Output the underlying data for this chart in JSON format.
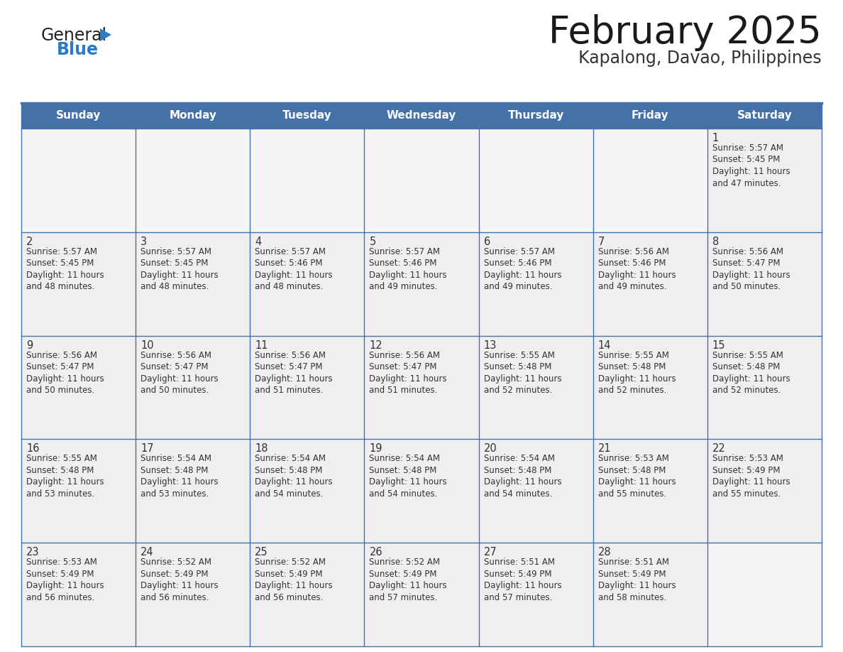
{
  "title": "February 2025",
  "subtitle": "Kapalong, Davao, Philippines",
  "header_bg_color": "#4472a8",
  "header_text_color": "#ffffff",
  "cell_bg_color": "#efefef",
  "empty_cell_bg_color": "#f5f5f5",
  "border_color": "#4472a8",
  "row_separator_color": "#4472a8",
  "day_headers": [
    "Sunday",
    "Monday",
    "Tuesday",
    "Wednesday",
    "Thursday",
    "Friday",
    "Saturday"
  ],
  "title_color": "#1a1a1a",
  "subtitle_color": "#333333",
  "day_number_color": "#333333",
  "info_text_color": "#333333",
  "calendar_data": [
    [
      null,
      null,
      null,
      null,
      null,
      null,
      {
        "day": 1,
        "sunrise": "5:57 AM",
        "sunset": "5:45 PM",
        "daylight": "11 hours and 47 minutes."
      }
    ],
    [
      {
        "day": 2,
        "sunrise": "5:57 AM",
        "sunset": "5:45 PM",
        "daylight": "11 hours and 48 minutes."
      },
      {
        "day": 3,
        "sunrise": "5:57 AM",
        "sunset": "5:45 PM",
        "daylight": "11 hours and 48 minutes."
      },
      {
        "day": 4,
        "sunrise": "5:57 AM",
        "sunset": "5:46 PM",
        "daylight": "11 hours and 48 minutes."
      },
      {
        "day": 5,
        "sunrise": "5:57 AM",
        "sunset": "5:46 PM",
        "daylight": "11 hours and 49 minutes."
      },
      {
        "day": 6,
        "sunrise": "5:57 AM",
        "sunset": "5:46 PM",
        "daylight": "11 hours and 49 minutes."
      },
      {
        "day": 7,
        "sunrise": "5:56 AM",
        "sunset": "5:46 PM",
        "daylight": "11 hours and 49 minutes."
      },
      {
        "day": 8,
        "sunrise": "5:56 AM",
        "sunset": "5:47 PM",
        "daylight": "11 hours and 50 minutes."
      }
    ],
    [
      {
        "day": 9,
        "sunrise": "5:56 AM",
        "sunset": "5:47 PM",
        "daylight": "11 hours and 50 minutes."
      },
      {
        "day": 10,
        "sunrise": "5:56 AM",
        "sunset": "5:47 PM",
        "daylight": "11 hours and 50 minutes."
      },
      {
        "day": 11,
        "sunrise": "5:56 AM",
        "sunset": "5:47 PM",
        "daylight": "11 hours and 51 minutes."
      },
      {
        "day": 12,
        "sunrise": "5:56 AM",
        "sunset": "5:47 PM",
        "daylight": "11 hours and 51 minutes."
      },
      {
        "day": 13,
        "sunrise": "5:55 AM",
        "sunset": "5:48 PM",
        "daylight": "11 hours and 52 minutes."
      },
      {
        "day": 14,
        "sunrise": "5:55 AM",
        "sunset": "5:48 PM",
        "daylight": "11 hours and 52 minutes."
      },
      {
        "day": 15,
        "sunrise": "5:55 AM",
        "sunset": "5:48 PM",
        "daylight": "11 hours and 52 minutes."
      }
    ],
    [
      {
        "day": 16,
        "sunrise": "5:55 AM",
        "sunset": "5:48 PM",
        "daylight": "11 hours and 53 minutes."
      },
      {
        "day": 17,
        "sunrise": "5:54 AM",
        "sunset": "5:48 PM",
        "daylight": "11 hours and 53 minutes."
      },
      {
        "day": 18,
        "sunrise": "5:54 AM",
        "sunset": "5:48 PM",
        "daylight": "11 hours and 54 minutes."
      },
      {
        "day": 19,
        "sunrise": "5:54 AM",
        "sunset": "5:48 PM",
        "daylight": "11 hours and 54 minutes."
      },
      {
        "day": 20,
        "sunrise": "5:54 AM",
        "sunset": "5:48 PM",
        "daylight": "11 hours and 54 minutes."
      },
      {
        "day": 21,
        "sunrise": "5:53 AM",
        "sunset": "5:48 PM",
        "daylight": "11 hours and 55 minutes."
      },
      {
        "day": 22,
        "sunrise": "5:53 AM",
        "sunset": "5:49 PM",
        "daylight": "11 hours and 55 minutes."
      }
    ],
    [
      {
        "day": 23,
        "sunrise": "5:53 AM",
        "sunset": "5:49 PM",
        "daylight": "11 hours and 56 minutes."
      },
      {
        "day": 24,
        "sunrise": "5:52 AM",
        "sunset": "5:49 PM",
        "daylight": "11 hours and 56 minutes."
      },
      {
        "day": 25,
        "sunrise": "5:52 AM",
        "sunset": "5:49 PM",
        "daylight": "11 hours and 56 minutes."
      },
      {
        "day": 26,
        "sunrise": "5:52 AM",
        "sunset": "5:49 PM",
        "daylight": "11 hours and 57 minutes."
      },
      {
        "day": 27,
        "sunrise": "5:51 AM",
        "sunset": "5:49 PM",
        "daylight": "11 hours and 57 minutes."
      },
      {
        "day": 28,
        "sunrise": "5:51 AM",
        "sunset": "5:49 PM",
        "daylight": "11 hours and 58 minutes."
      },
      null
    ]
  ],
  "logo_general_color": "#222222",
  "logo_blue_color": "#2a7cc7",
  "logo_triangle_color": "#2a7cc7",
  "fig_width": 11.88,
  "fig_height": 9.18,
  "dpi": 100
}
